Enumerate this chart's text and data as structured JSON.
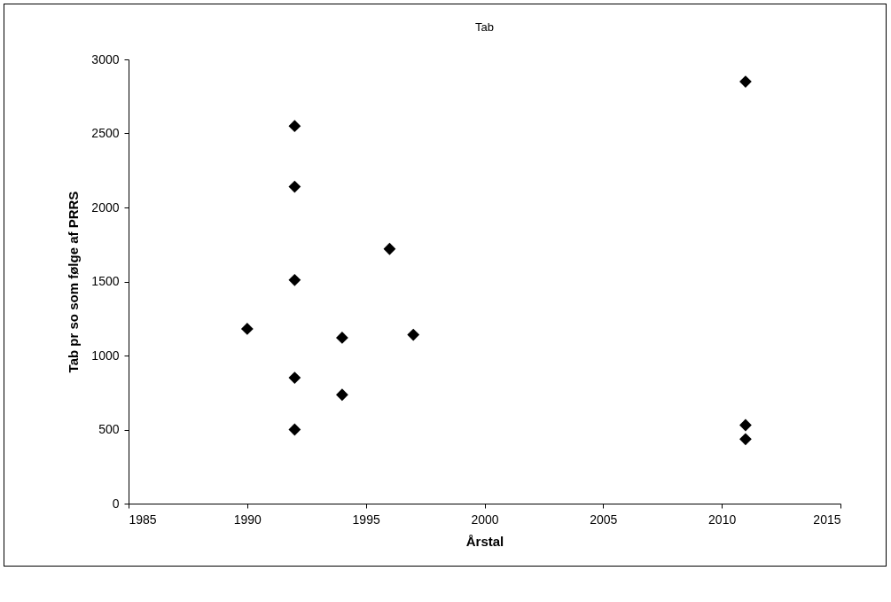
{
  "chart_data": {
    "type": "scatter",
    "title": "Tab",
    "xlabel": "Årstal",
    "ylabel": "Tab pr so som følge af PRRS",
    "x": [
      1990,
      1992,
      1992,
      1992,
      1992,
      1992,
      1994,
      1994,
      1996,
      1997,
      2011,
      2011,
      2011
    ],
    "series": [
      {
        "color": "#000000",
        "values": [
          1180,
          2550,
          2140,
          1510,
          850,
          500,
          1120,
          735,
          1720,
          1140,
          2850,
          530,
          435
        ]
      }
    ],
    "xlim": [
      1985,
      2015
    ],
    "xticks": [
      1985,
      1990,
      1995,
      2000,
      2005,
      2010,
      2015
    ],
    "ylim": [
      0,
      3000
    ],
    "yticks": [
      0,
      500,
      1000,
      1500,
      2000,
      2500,
      3000
    ],
    "marker": "diamond",
    "grid": false
  }
}
